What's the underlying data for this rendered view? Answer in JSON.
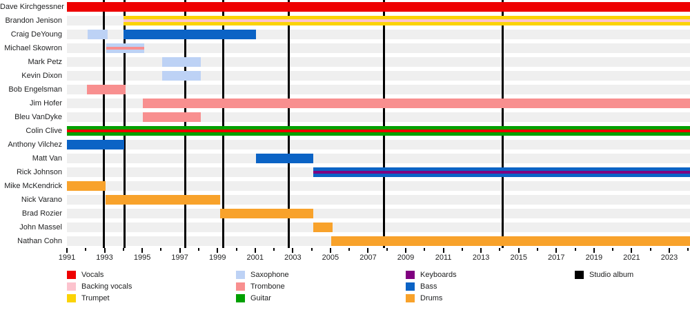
{
  "chart_data": {
    "type": "timeline",
    "description": "Band members timeline (gantt-style) with instrument roles and studio album markers",
    "axis": {
      "min": 1991,
      "max": 2024.1,
      "labeled_years": [
        1991,
        1993,
        1995,
        1997,
        1999,
        2001,
        2003,
        2005,
        2007,
        2009,
        2011,
        2013,
        2015,
        2017,
        2019,
        2021,
        2023
      ],
      "minor_tick_every_year": true,
      "grid": false
    },
    "colors": {
      "vocals": "#ee0000",
      "backing_vocals": "#fcc3ce",
      "trumpet": "#fbd306",
      "saxophone": "#bdd2f5",
      "trombone": "#f88f8f",
      "guitar": "#00a000",
      "keyboards": "#800080",
      "bass": "#0b63c5",
      "drums": "#f8a22b",
      "studio_album": "#000000",
      "row_track": "#efefef"
    },
    "members": [
      {
        "name": "Dave Kirchgessner",
        "bars": [
          {
            "role": "vocals",
            "start": 1991,
            "end": "present"
          }
        ]
      },
      {
        "name": "Brandon Jenison",
        "bars": [
          {
            "role": "trumpet",
            "stripe": "backing_vocals",
            "start": 1994,
            "end": "present"
          }
        ]
      },
      {
        "name": "Craig DeYoung",
        "bars": [
          {
            "role": "saxophone",
            "start": 1992.1,
            "end": 1993.15
          },
          {
            "role": "bass",
            "start": 1994,
            "end": 2001.05
          }
        ]
      },
      {
        "name": "Michael Skowron",
        "bars": [
          {
            "role": "saxophone",
            "stripe": "trombone",
            "start": 1993.1,
            "end": 1995.1
          }
        ]
      },
      {
        "name": "Mark Petz",
        "bars": [
          {
            "role": "saxophone",
            "start": 1996.05,
            "end": 1998.1
          }
        ]
      },
      {
        "name": "Kevin Dixon",
        "bars": [
          {
            "role": "saxophone",
            "start": 1996.05,
            "end": 1998.1
          }
        ]
      },
      {
        "name": "Bob Engelsman",
        "bars": [
          {
            "role": "trombone",
            "start": 1992.05,
            "end": 1994.1
          }
        ]
      },
      {
        "name": "Jim Hofer",
        "bars": [
          {
            "role": "trombone",
            "start": 1995.05,
            "end": "present"
          }
        ]
      },
      {
        "name": "Bleu VanDyke",
        "bars": [
          {
            "role": "trombone",
            "start": 1995.05,
            "end": 1998.1
          }
        ]
      },
      {
        "name": "Colin Clive",
        "bars": [
          {
            "role": "guitar",
            "stripe": "vocals",
            "start": 1991,
            "end": "present"
          }
        ]
      },
      {
        "name": "Anthony Vilchez",
        "bars": [
          {
            "role": "bass",
            "start": 1991,
            "end": 1994.05
          }
        ]
      },
      {
        "name": "Matt Van",
        "bars": [
          {
            "role": "bass",
            "start": 2001.05,
            "end": 2004.1
          }
        ]
      },
      {
        "name": "Rick Johnson",
        "bars": [
          {
            "role": "bass",
            "stripe": "keyboards",
            "start": 2004.1,
            "end": "present"
          }
        ]
      },
      {
        "name": "Mike McKendrick",
        "bars": [
          {
            "role": "drums",
            "start": 1991,
            "end": 1993.05
          }
        ]
      },
      {
        "name": "Nick Varano",
        "bars": [
          {
            "role": "drums",
            "start": 1993.05,
            "end": 1999.15
          }
        ]
      },
      {
        "name": "Brad Rozier",
        "bars": [
          {
            "role": "drums",
            "start": 1999.15,
            "end": 2004.1
          }
        ]
      },
      {
        "name": "John Massel",
        "bars": [
          {
            "role": "drums",
            "start": 2004.1,
            "end": 2005.1
          }
        ]
      },
      {
        "name": "Nathan Cohn",
        "bars": [
          {
            "role": "drums",
            "start": 2005.05,
            "end": "present"
          }
        ]
      }
    ],
    "studio_albums_years": [
      1992.95,
      1994.05,
      1997.3,
      1999.3,
      2002.8,
      2007.85,
      2014.15
    ],
    "legend": {
      "columns": [
        [
          {
            "id": "vocals",
            "label": "Vocals"
          },
          {
            "id": "backing_vocals",
            "label": "Backing vocals"
          },
          {
            "id": "trumpet",
            "label": "Trumpet"
          }
        ],
        [
          {
            "id": "saxophone",
            "label": "Saxophone"
          },
          {
            "id": "trombone",
            "label": "Trombone"
          },
          {
            "id": "guitar",
            "label": "Guitar"
          }
        ],
        [
          {
            "id": "keyboards",
            "label": "Keyboards"
          },
          {
            "id": "bass",
            "label": "Bass"
          },
          {
            "id": "drums",
            "label": "Drums"
          }
        ],
        [
          {
            "id": "studio_album",
            "label": "Studio album"
          }
        ]
      ]
    }
  }
}
